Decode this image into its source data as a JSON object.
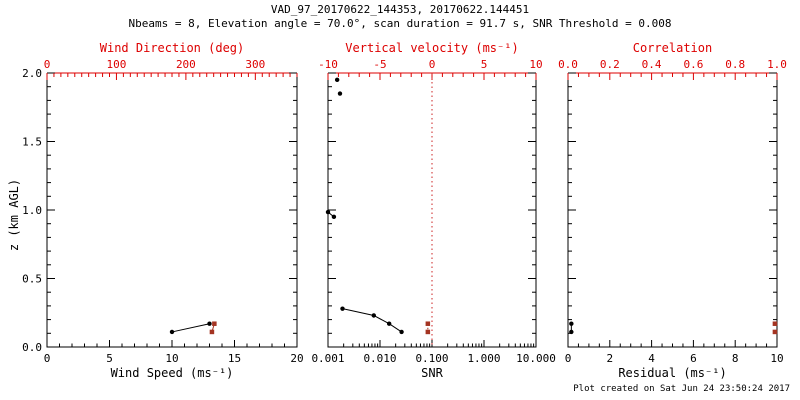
{
  "header": {
    "title": "VAD_97_20170622_144353, 20170622.144451",
    "subtitle": "Nbeams = 8, Elevation angle = 70.0°, scan duration = 91.7 s, SNR Threshold = 0.008"
  },
  "footer": {
    "created_text": "Plot created on Sat Jun 24 23:50:24 2017"
  },
  "colors": {
    "background": "#ffffff",
    "frame": "#000000",
    "axis_red": "#dd0000",
    "marker_black": "#000000",
    "marker_red": "#a43422",
    "refline_red": "#cc2222"
  },
  "chart_data": [
    {
      "type": "scatter",
      "name": "wind",
      "ylabel": "z (km AGL)",
      "ylim": [
        0.0,
        2.0
      ],
      "y_minor_step": 0.1,
      "show_ylabels": true,
      "yticks": [
        {
          "v": 0.0,
          "label": "0.0"
        },
        {
          "v": 0.5,
          "label": "0.5"
        },
        {
          "v": 1.0,
          "label": "1.0"
        },
        {
          "v": 1.5,
          "label": "1.5"
        },
        {
          "v": 2.0,
          "label": "2.0"
        }
      ],
      "bottom_axis": {
        "label": "Wind Speed (ms⁻¹)",
        "scale": "linear",
        "lim": [
          0,
          20
        ],
        "minor_step": 1,
        "ticks": [
          {
            "v": 0,
            "label": "0"
          },
          {
            "v": 5,
            "label": "5"
          },
          {
            "v": 10,
            "label": "10"
          },
          {
            "v": 15,
            "label": "15"
          },
          {
            "v": 20,
            "label": "20"
          }
        ]
      },
      "top_axis": {
        "label": "Wind Direction (deg)",
        "scale": "linear",
        "lim": [
          0,
          360
        ],
        "minor_step": 10,
        "ticks": [
          {
            "v": 0,
            "label": "0"
          },
          {
            "v": 100,
            "label": "100"
          },
          {
            "v": 200,
            "label": "200"
          },
          {
            "v": 300,
            "label": "300"
          }
        ]
      },
      "series": [
        {
          "name": "wind-speed",
          "axis": "bottom",
          "color": "black",
          "marker": "circle",
          "connect": "solid",
          "points": [
            [
              10.0,
              0.11
            ],
            [
              13.0,
              0.17
            ]
          ]
        },
        {
          "name": "wind-direction",
          "axis": "top",
          "color": "red",
          "marker": "square",
          "connect": "solid",
          "points": [
            [
              237.5,
              0.11
            ],
            [
              241.0,
              0.17
            ]
          ]
        }
      ]
    },
    {
      "type": "scatter",
      "name": "snr",
      "ylim": [
        0.0,
        2.0
      ],
      "y_minor_step": 0.1,
      "show_ylabels": false,
      "yticks": [
        {
          "v": 0.0,
          "label": "0.0"
        },
        {
          "v": 0.5,
          "label": "0.5"
        },
        {
          "v": 1.0,
          "label": "1.0"
        },
        {
          "v": 1.5,
          "label": "1.5"
        },
        {
          "v": 2.0,
          "label": "2.0"
        }
      ],
      "bottom_axis": {
        "label": "SNR",
        "scale": "log",
        "lim": [
          0.001,
          10
        ],
        "ticks": [
          {
            "v": 0.001,
            "label": "0.001"
          },
          {
            "v": 0.01,
            "label": "0.010"
          },
          {
            "v": 0.1,
            "label": "0.100"
          },
          {
            "v": 1,
            "label": "1.000"
          },
          {
            "v": 10,
            "label": "10.000"
          }
        ]
      },
      "top_axis": {
        "label": "Vertical velocity (ms⁻¹)",
        "scale": "linear",
        "lim": [
          -10,
          10
        ],
        "minor_step": 1,
        "ticks": [
          {
            "v": -10,
            "label": "-10"
          },
          {
            "v": -5,
            "label": "-5"
          },
          {
            "v": 0,
            "label": "0"
          },
          {
            "v": 5,
            "label": "5"
          },
          {
            "v": 10,
            "label": "10"
          }
        ]
      },
      "reference_line": {
        "axis": "top",
        "value": 0,
        "style": "dotted",
        "color": "red"
      },
      "series": [
        {
          "name": "snr-upper-gates",
          "axis": "bottom",
          "color": "black",
          "marker": "circle",
          "connect": "none",
          "points": [
            [
              0.0015,
              1.95
            ],
            [
              0.0017,
              1.85
            ]
          ]
        },
        {
          "name": "snr-mid-gates",
          "axis": "bottom",
          "color": "black",
          "marker": "circle",
          "connect": "solid",
          "points": [
            [
              0.001,
              0.985
            ],
            [
              0.0013,
              0.95
            ]
          ]
        },
        {
          "name": "snr-low-gates",
          "axis": "bottom",
          "color": "black",
          "marker": "circle",
          "connect": "solid",
          "points": [
            [
              0.0019,
              0.28
            ],
            [
              0.0076,
              0.23
            ],
            [
              0.015,
              0.17
            ],
            [
              0.026,
              0.11
            ]
          ]
        },
        {
          "name": "vertical-velocity",
          "axis": "top",
          "color": "red",
          "marker": "square",
          "connect": "dotted",
          "points": [
            [
              -0.4,
              0.17
            ],
            [
              -0.4,
              0.11
            ]
          ]
        }
      ]
    },
    {
      "type": "scatter",
      "name": "residual",
      "ylim": [
        0.0,
        2.0
      ],
      "y_minor_step": 0.1,
      "show_ylabels": false,
      "yticks": [
        {
          "v": 0.0,
          "label": "0.0"
        },
        {
          "v": 0.5,
          "label": "0.5"
        },
        {
          "v": 1.0,
          "label": "1.0"
        },
        {
          "v": 1.5,
          "label": "1.5"
        },
        {
          "v": 2.0,
          "label": "2.0"
        }
      ],
      "bottom_axis": {
        "label": "Residual (ms⁻¹)",
        "scale": "linear",
        "lim": [
          0,
          10
        ],
        "minor_step": 0.5,
        "ticks": [
          {
            "v": 0,
            "label": "0"
          },
          {
            "v": 2,
            "label": "2"
          },
          {
            "v": 4,
            "label": "4"
          },
          {
            "v": 6,
            "label": "6"
          },
          {
            "v": 8,
            "label": "8"
          },
          {
            "v": 10,
            "label": "10"
          }
        ]
      },
      "top_axis": {
        "label": "Correlation",
        "scale": "linear",
        "lim": [
          0,
          1
        ],
        "minor_step": 0.05,
        "ticks": [
          {
            "v": 0,
            "label": "0.0"
          },
          {
            "v": 0.2,
            "label": "0.2"
          },
          {
            "v": 0.4,
            "label": "0.4"
          },
          {
            "v": 0.6,
            "label": "0.6"
          },
          {
            "v": 0.8,
            "label": "0.8"
          },
          {
            "v": 1,
            "label": "1.0"
          }
        ]
      },
      "series": [
        {
          "name": "residual",
          "axis": "bottom",
          "color": "black",
          "marker": "circle",
          "connect": "solid",
          "points": [
            [
              0.16,
              0.17
            ],
            [
              0.16,
              0.11
            ]
          ]
        },
        {
          "name": "correlation",
          "axis": "top",
          "color": "red",
          "marker": "square",
          "connect": "none",
          "points": [
            [
              0.99,
              0.17
            ],
            [
              0.99,
              0.11
            ]
          ]
        }
      ]
    }
  ]
}
